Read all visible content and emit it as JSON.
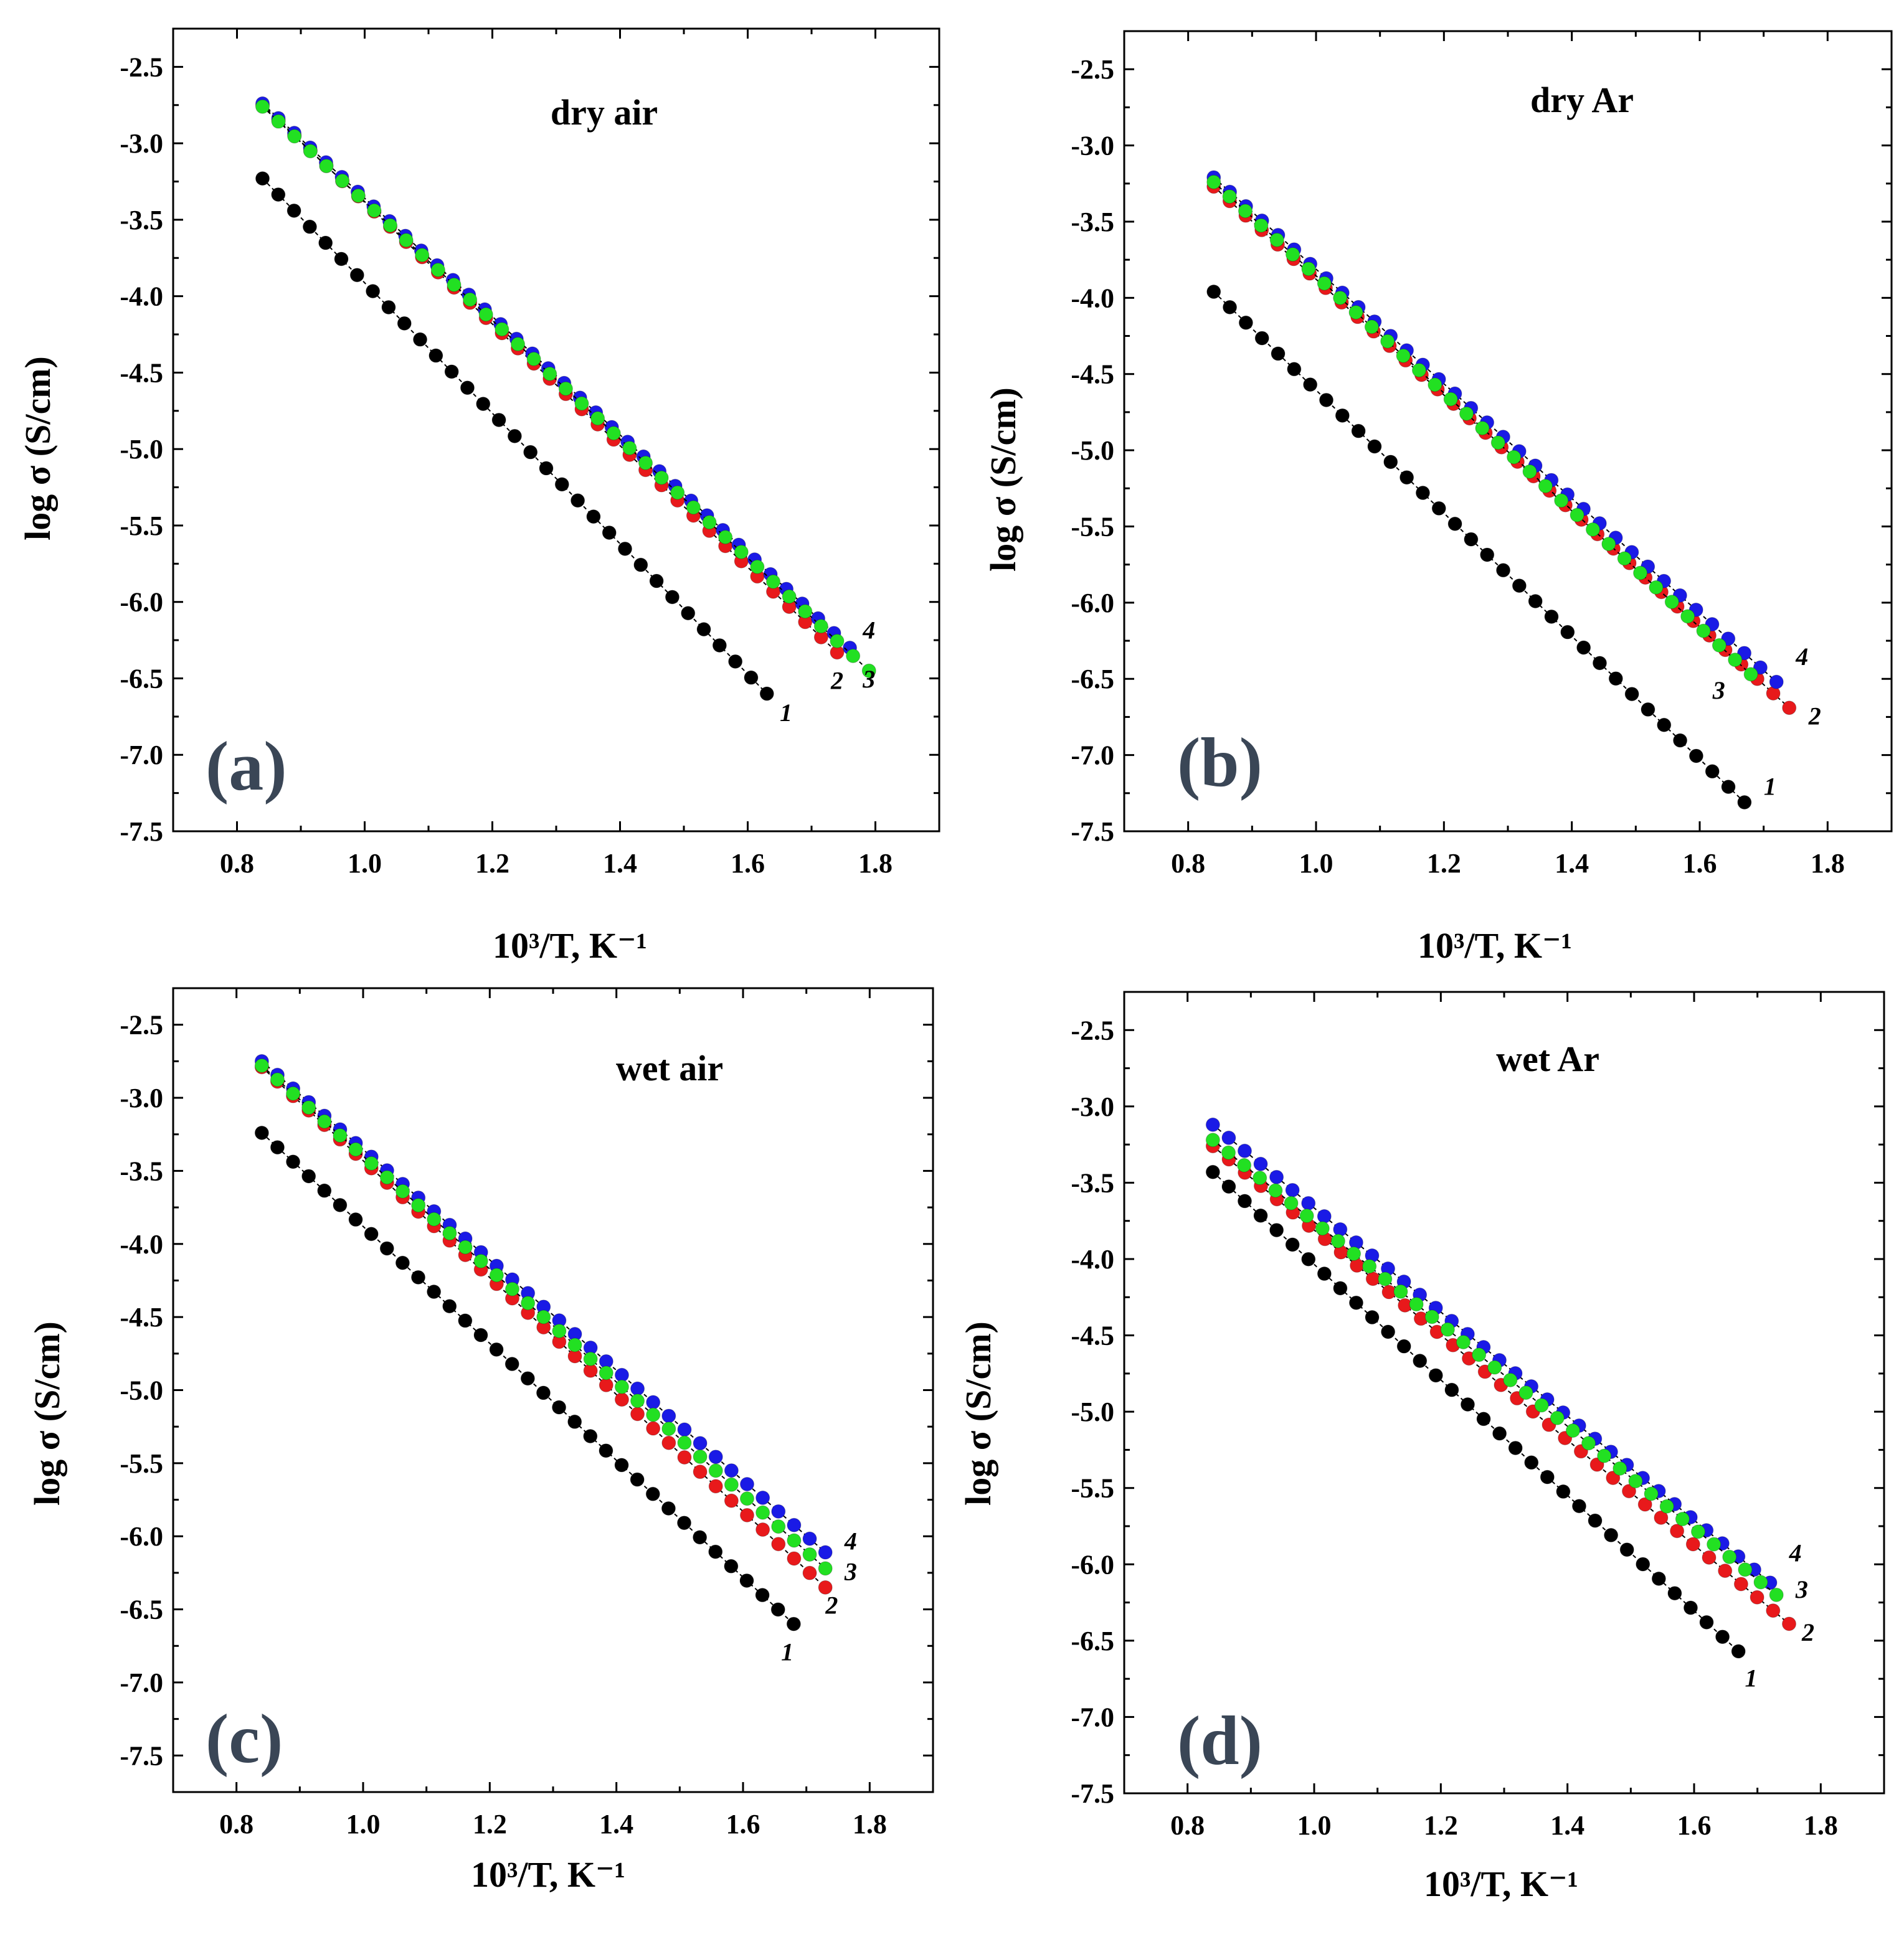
{
  "figure": {
    "description_free": true
  },
  "chart_data": [
    {
      "type": "scatter",
      "panel_label": "(a)",
      "title": "dry air",
      "xlabel": "10³/T, K⁻¹",
      "ylabel": "log σ (S/cm)",
      "xlim": [
        0.7,
        1.9
      ],
      "ylim": [
        -7.5,
        -2.25
      ],
      "xticks": [
        0.8,
        1.0,
        1.2,
        1.4,
        1.6,
        1.8
      ],
      "yticks": [
        -7.5,
        -7.0,
        -6.5,
        -6.0,
        -5.5,
        -5.0,
        -4.5,
        -4.0,
        -3.5,
        -3.0,
        -2.5
      ],
      "xtick_labels": [
        "0.8",
        "1.0",
        "1.2",
        "1.4",
        "1.6",
        "1.8"
      ],
      "ytick_labels": [
        "-7.5",
        "-7.0",
        "-6.5",
        "-6.0",
        "-5.5",
        "-5.0",
        "-4.5",
        "-4.0",
        "-3.5",
        "-3.0",
        "-2.5"
      ],
      "series": [
        {
          "name": "1",
          "color": "#000000",
          "x_start": 0.84,
          "x_end": 1.63,
          "y_start": -3.23,
          "y_end": -6.6,
          "label_value": [
            1.66,
            -6.78
          ]
        },
        {
          "name": "2",
          "color": "#e8191b",
          "x_start": 0.84,
          "x_end": 1.74,
          "y_start": -2.75,
          "y_end": -6.33,
          "label_value": [
            1.74,
            -6.57
          ]
        },
        {
          "name": "3",
          "color": "#22e022",
          "x_start": 0.84,
          "x_end": 1.79,
          "y_start": -2.76,
          "y_end": -6.45,
          "label_value": [
            1.79,
            -6.56
          ]
        },
        {
          "name": "4",
          "color": "#1a1ae6",
          "x_start": 0.84,
          "x_end": 1.76,
          "y_start": -2.74,
          "y_end": -6.3,
          "label_value": [
            1.79,
            -6.24
          ]
        }
      ]
    },
    {
      "type": "scatter",
      "panel_label": "(b)",
      "title": "dry Ar",
      "xlabel": "10³/T, K⁻¹",
      "ylabel": "log σ (S/cm)",
      "xlim": [
        0.7,
        1.9
      ],
      "ylim": [
        -7.5,
        -2.25
      ],
      "xticks": [
        0.8,
        1.0,
        1.2,
        1.4,
        1.6,
        1.8
      ],
      "yticks": [
        -7.5,
        -7.0,
        -6.5,
        -6.0,
        -5.5,
        -5.0,
        -4.5,
        -4.0,
        -3.5,
        -3.0,
        -2.5
      ],
      "xtick_labels": [
        "0.8",
        "1.0",
        "1.2",
        "1.4",
        "1.6",
        "1.8"
      ],
      "ytick_labels": [
        "-7.5",
        "-7.0",
        "-6.5",
        "-6.0",
        "-5.5",
        "-5.0",
        "-4.5",
        "-4.0",
        "-3.5",
        "-3.0",
        "-2.5"
      ],
      "series": [
        {
          "name": "1",
          "color": "#000000",
          "x_start": 0.84,
          "x_end": 1.67,
          "y_start": -3.96,
          "y_end": -7.31,
          "label_value": [
            1.71,
            -7.26
          ]
        },
        {
          "name": "2",
          "color": "#e8191b",
          "x_start": 0.84,
          "x_end": 1.74,
          "y_start": -3.27,
          "y_end": -6.69,
          "label_value": [
            1.78,
            -6.8
          ]
        },
        {
          "name": "3",
          "color": "#22e022",
          "x_start": 0.84,
          "x_end": 1.68,
          "y_start": -3.24,
          "y_end": -6.47,
          "label_value": [
            1.63,
            -6.63
          ]
        },
        {
          "name": "4",
          "color": "#1a1ae6",
          "x_start": 0.84,
          "x_end": 1.72,
          "y_start": -3.21,
          "y_end": -6.52,
          "label_value": [
            1.76,
            -6.41
          ]
        }
      ]
    },
    {
      "type": "scatter",
      "panel_label": "(c)",
      "title": "wet air",
      "xlabel": "10³/T, K⁻¹",
      "ylabel": "log σ (S/cm)",
      "xlim": [
        0.7,
        1.9
      ],
      "ylim": [
        -7.75,
        -2.25
      ],
      "xticks": [
        0.8,
        1.0,
        1.2,
        1.4,
        1.6,
        1.8
      ],
      "yticks": [
        -7.5,
        -7.0,
        -6.5,
        -6.0,
        -5.5,
        -5.0,
        -4.5,
        -4.0,
        -3.5,
        -3.0,
        -2.5
      ],
      "xtick_labels": [
        "0.8",
        "1.0",
        "1.2",
        "1.4",
        "1.6",
        "1.8"
      ],
      "ytick_labels": [
        "-7.5",
        "-7.0",
        "-6.5",
        "-6.0",
        "-5.5",
        "-5.0",
        "-4.5",
        "-4.0",
        "-3.5",
        "-3.0",
        "-2.5"
      ],
      "series": [
        {
          "name": "1",
          "color": "#000000",
          "x_start": 0.84,
          "x_end": 1.68,
          "y_start": -3.24,
          "y_end": -6.6,
          "label_value": [
            1.67,
            -6.85
          ]
        },
        {
          "name": "2",
          "color": "#e8191b",
          "x_start": 0.84,
          "x_end": 1.73,
          "y_start": -2.79,
          "y_end": -6.35,
          "label_value": [
            1.74,
            -6.53
          ]
        },
        {
          "name": "3",
          "color": "#22e022",
          "x_start": 0.84,
          "x_end": 1.73,
          "y_start": -2.78,
          "y_end": -6.22,
          "label_value": [
            1.77,
            -6.3
          ]
        },
        {
          "name": "4",
          "color": "#1a1ae6",
          "x_start": 0.84,
          "x_end": 1.73,
          "y_start": -2.75,
          "y_end": -6.11,
          "label_value": [
            1.77,
            -6.09
          ]
        }
      ]
    },
    {
      "type": "scatter",
      "panel_label": "(d)",
      "title": "wet Ar",
      "xlabel": "10³/T, K⁻¹",
      "ylabel": "log σ (S/cm)",
      "xlim": [
        0.7,
        1.9
      ],
      "ylim": [
        -7.5,
        -2.25
      ],
      "xticks": [
        0.8,
        1.0,
        1.2,
        1.4,
        1.6,
        1.8
      ],
      "yticks": [
        -7.5,
        -7.0,
        -6.5,
        -6.0,
        -5.5,
        -5.0,
        -4.5,
        -4.0,
        -3.5,
        -3.0,
        -2.5
      ],
      "xtick_labels": [
        "0.8",
        "1.0",
        "1.2",
        "1.4",
        "1.6",
        "1.8"
      ],
      "ytick_labels": [
        "-7.5",
        "-7.0",
        "-6.5",
        "-6.0",
        "-5.5",
        "-5.0",
        "-4.5",
        "-4.0",
        "-3.5",
        "-3.0",
        "-2.5"
      ],
      "series": [
        {
          "name": "1",
          "color": "#000000",
          "x_start": 0.84,
          "x_end": 1.67,
          "y_start": -3.43,
          "y_end": -6.57,
          "label_value": [
            1.69,
            -6.8
          ]
        },
        {
          "name": "2",
          "color": "#e8191b",
          "x_start": 0.84,
          "x_end": 1.75,
          "y_start": -3.26,
          "y_end": -6.39,
          "label_value": [
            1.78,
            -6.5
          ]
        },
        {
          "name": "3",
          "color": "#22e022",
          "x_start": 0.84,
          "x_end": 1.73,
          "y_start": -3.22,
          "y_end": -6.2,
          "label_value": [
            1.77,
            -6.22
          ]
        },
        {
          "name": "4",
          "color": "#1a1ae6",
          "x_start": 0.84,
          "x_end": 1.72,
          "y_start": -3.12,
          "y_end": -6.12,
          "label_value": [
            1.76,
            -5.98
          ]
        }
      ]
    }
  ]
}
